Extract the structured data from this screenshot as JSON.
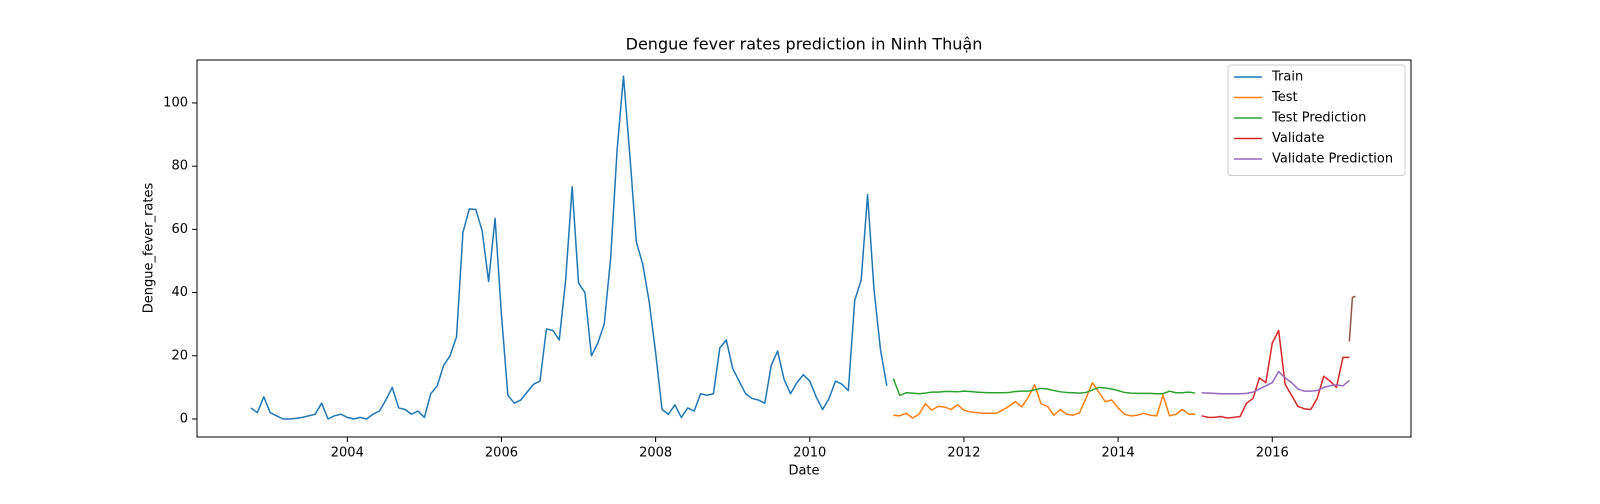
{
  "chart_data": {
    "type": "line",
    "title": "Dengue fever rates prediction in Ninh Thuận",
    "x_label": "Date",
    "y_label": "Dengue_fever_rates",
    "xlim": [
      2002.05,
      2017.8
    ],
    "ylim": [
      -5.7,
      113.6
    ],
    "xticks": [
      2004,
      2006,
      2008,
      2010,
      2012,
      2014,
      2016
    ],
    "yticks": [
      0,
      20,
      40,
      60,
      80,
      100
    ],
    "legend": "upper right",
    "grid": false,
    "series": [
      {
        "name": "Train",
        "color": "#1f77b4",
        "x": [
          2002.75,
          2002.833,
          2002.917,
          2003,
          2003.083,
          2003.167,
          2003.25,
          2003.333,
          2003.417,
          2003.5,
          2003.583,
          2003.667,
          2003.75,
          2003.833,
          2003.917,
          2004,
          2004.083,
          2004.167,
          2004.25,
          2004.333,
          2004.417,
          2004.5,
          2004.583,
          2004.667,
          2004.75,
          2004.833,
          2004.917,
          2005,
          2005.083,
          2005.167,
          2005.25,
          2005.333,
          2005.417,
          2005.5,
          2005.583,
          2005.667,
          2005.75,
          2005.833,
          2005.917,
          2006,
          2006.083,
          2006.167,
          2006.25,
          2006.333,
          2006.417,
          2006.5,
          2006.583,
          2006.667,
          2006.75,
          2006.833,
          2006.917,
          2007,
          2007.083,
          2007.167,
          2007.25,
          2007.333,
          2007.417,
          2007.5,
          2007.583,
          2007.667,
          2007.75,
          2007.833,
          2007.917,
          2008,
          2008.083,
          2008.167,
          2008.25,
          2008.333,
          2008.417,
          2008.5,
          2008.583,
          2008.667,
          2008.75,
          2008.833,
          2008.917,
          2009,
          2009.083,
          2009.167,
          2009.25,
          2009.333,
          2009.417,
          2009.5,
          2009.583,
          2009.667,
          2009.75,
          2009.833,
          2009.917,
          2010,
          2010.083,
          2010.167,
          2010.25,
          2010.333,
          2010.417,
          2010.5,
          2010.583,
          2010.667,
          2010.75,
          2010.833,
          2010.917,
          2011
        ],
        "values": [
          3.5,
          2,
          7,
          2,
          1,
          0,
          0,
          0.2,
          0.5,
          1,
          1.5,
          5,
          0,
          1,
          1.5,
          0.5,
          0,
          0.5,
          0,
          1.5,
          2.5,
          6,
          10,
          3.5,
          3,
          1.5,
          2.5,
          0.5,
          8,
          10.5,
          17,
          20,
          26,
          59,
          66.5,
          66.3,
          59.5,
          43.5,
          63.5,
          33,
          7.5,
          5,
          6,
          8.5,
          11,
          12,
          28.5,
          28,
          25,
          44,
          73.5,
          43,
          40,
          20,
          24,
          30,
          51,
          85,
          108.5,
          83,
          56,
          49,
          37,
          21,
          3,
          1.5,
          4.5,
          0.5,
          3.5,
          2.5,
          8,
          7.5,
          8,
          22.5,
          25,
          16,
          12,
          8,
          6.5,
          6,
          5,
          17,
          21.5,
          12.5,
          8,
          11.5,
          14,
          12,
          7,
          3,
          6.5,
          12,
          11,
          9,
          37.5,
          44,
          71,
          41,
          22,
          10.5
        ]
      },
      {
        "name": "Test",
        "color": "#ff7f0e",
        "x": [
          2011.083,
          2011.167,
          2011.25,
          2011.333,
          2011.417,
          2011.5,
          2011.583,
          2011.667,
          2011.75,
          2011.833,
          2011.917,
          2012,
          2012.083,
          2012.167,
          2012.25,
          2012.333,
          2012.417,
          2012.5,
          2012.583,
          2012.667,
          2012.75,
          2012.833,
          2012.917,
          2013,
          2013.083,
          2013.167,
          2013.25,
          2013.333,
          2013.417,
          2013.5,
          2013.583,
          2013.667,
          2013.75,
          2013.833,
          2013.917,
          2014,
          2014.083,
          2014.167,
          2014.25,
          2014.333,
          2014.417,
          2014.5,
          2014.583,
          2014.667,
          2014.75,
          2014.833,
          2014.917,
          2015
        ],
        "values": [
          1.2,
          1,
          1.8,
          0.3,
          1.5,
          4.8,
          2.8,
          4,
          3.8,
          3,
          4.5,
          2.8,
          2.2,
          2,
          1.8,
          1.8,
          1.8,
          2.8,
          4,
          5.5,
          3.8,
          6.8,
          10.8,
          4.8,
          4,
          1.2,
          3,
          1.5,
          1.2,
          2,
          6.5,
          11.5,
          8.5,
          5.5,
          6,
          3.5,
          1.5,
          1,
          1.2,
          1.8,
          1.2,
          1,
          7.5,
          1,
          1.5,
          3,
          1.5,
          1.5
        ]
      },
      {
        "name": "Test Prediction",
        "color": "#2ca02c",
        "x": [
          2011.083,
          2011.167,
          2011.25,
          2011.333,
          2011.417,
          2011.5,
          2011.583,
          2011.667,
          2011.75,
          2011.833,
          2011.917,
          2012,
          2012.083,
          2012.167,
          2012.25,
          2012.333,
          2012.417,
          2012.5,
          2012.583,
          2012.667,
          2012.75,
          2012.833,
          2012.917,
          2013,
          2013.083,
          2013.167,
          2013.25,
          2013.333,
          2013.417,
          2013.5,
          2013.583,
          2013.667,
          2013.75,
          2013.833,
          2013.917,
          2014,
          2014.083,
          2014.167,
          2014.25,
          2014.333,
          2014.417,
          2014.5,
          2014.583,
          2014.667,
          2014.75,
          2014.833,
          2014.917,
          2015
        ],
        "values": [
          12.8,
          7.5,
          8.3,
          8.2,
          8,
          8.2,
          8.5,
          8.5,
          8.7,
          8.7,
          8.6,
          8.8,
          8.7,
          8.5,
          8.4,
          8.3,
          8.3,
          8.3,
          8.4,
          8.7,
          8.8,
          8.8,
          9.2,
          9.7,
          9.5,
          9,
          8.6,
          8.4,
          8.3,
          8.2,
          8.4,
          9.2,
          10,
          9.8,
          9.5,
          9,
          8.4,
          8.2,
          8.1,
          8.1,
          8.1,
          8,
          8,
          8.8,
          8.3,
          8.3,
          8.5,
          8.2
        ]
      },
      {
        "name": "Validate",
        "color": "#d62728",
        "x": [
          2015.083,
          2015.167,
          2015.25,
          2015.333,
          2015.417,
          2015.5,
          2015.583,
          2015.667,
          2015.75,
          2015.833,
          2015.917,
          2016,
          2016.083,
          2016.167,
          2016.25,
          2016.333,
          2016.417,
          2016.5,
          2016.583,
          2016.667,
          2016.75,
          2016.833,
          2016.917,
          2017
        ],
        "values": [
          1,
          0.5,
          0.5,
          0.8,
          0.3,
          0.5,
          0.8,
          5,
          6.5,
          13,
          11.5,
          24,
          28,
          11,
          7.5,
          4,
          3.2,
          3,
          6.5,
          13.5,
          12,
          10,
          19.5,
          19.5
        ]
      },
      {
        "name": "Validate Prediction",
        "color": "#9467bd",
        "x": [
          2015.083,
          2015.167,
          2015.25,
          2015.333,
          2015.417,
          2015.5,
          2015.583,
          2015.667,
          2015.75,
          2015.833,
          2015.917,
          2016,
          2016.083,
          2016.167,
          2016.25,
          2016.333,
          2016.417,
          2016.5,
          2016.583,
          2016.667,
          2016.75,
          2016.833,
          2016.917,
          2017
        ],
        "values": [
          8.3,
          8.2,
          8.1,
          8,
          8,
          8,
          8,
          8.1,
          8.5,
          9.5,
          10.5,
          11.5,
          15,
          13,
          11.5,
          9.5,
          8.8,
          8.8,
          9,
          10,
          10.5,
          10.8,
          10.5,
          12.2
        ]
      },
      {
        "color": "#8c564b",
        "x": [
          2017,
          2017.04,
          2017.08
        ],
        "values": [
          24.5,
          38.5,
          38.8
        ]
      }
    ]
  }
}
